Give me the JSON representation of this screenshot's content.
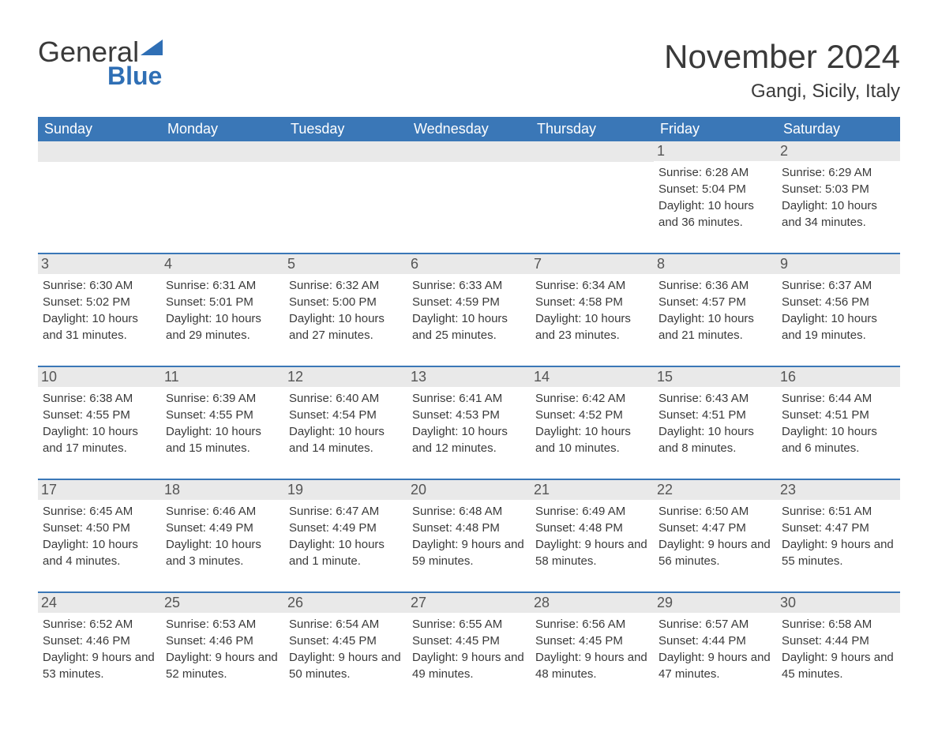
{
  "logo": {
    "text1": "General",
    "text2": "Blue"
  },
  "title": "November 2024",
  "location": "Gangi, Sicily, Italy",
  "colors": {
    "header_bg": "#3a77b7",
    "daynum_bg": "#e9e9e9",
    "row_border": "#3a77b7",
    "accent": "#2f6fb5",
    "background": "#ffffff",
    "text": "#3a3a3a"
  },
  "weekdays": [
    "Sunday",
    "Monday",
    "Tuesday",
    "Wednesday",
    "Thursday",
    "Friday",
    "Saturday"
  ],
  "weeks": [
    [
      null,
      null,
      null,
      null,
      null,
      {
        "day": 1,
        "sunrise": "6:28 AM",
        "sunset": "5:04 PM",
        "daylight": "10 hours and 36 minutes."
      },
      {
        "day": 2,
        "sunrise": "6:29 AM",
        "sunset": "5:03 PM",
        "daylight": "10 hours and 34 minutes."
      }
    ],
    [
      {
        "day": 3,
        "sunrise": "6:30 AM",
        "sunset": "5:02 PM",
        "daylight": "10 hours and 31 minutes."
      },
      {
        "day": 4,
        "sunrise": "6:31 AM",
        "sunset": "5:01 PM",
        "daylight": "10 hours and 29 minutes."
      },
      {
        "day": 5,
        "sunrise": "6:32 AM",
        "sunset": "5:00 PM",
        "daylight": "10 hours and 27 minutes."
      },
      {
        "day": 6,
        "sunrise": "6:33 AM",
        "sunset": "4:59 PM",
        "daylight": "10 hours and 25 minutes."
      },
      {
        "day": 7,
        "sunrise": "6:34 AM",
        "sunset": "4:58 PM",
        "daylight": "10 hours and 23 minutes."
      },
      {
        "day": 8,
        "sunrise": "6:36 AM",
        "sunset": "4:57 PM",
        "daylight": "10 hours and 21 minutes."
      },
      {
        "day": 9,
        "sunrise": "6:37 AM",
        "sunset": "4:56 PM",
        "daylight": "10 hours and 19 minutes."
      }
    ],
    [
      {
        "day": 10,
        "sunrise": "6:38 AM",
        "sunset": "4:55 PM",
        "daylight": "10 hours and 17 minutes."
      },
      {
        "day": 11,
        "sunrise": "6:39 AM",
        "sunset": "4:55 PM",
        "daylight": "10 hours and 15 minutes."
      },
      {
        "day": 12,
        "sunrise": "6:40 AM",
        "sunset": "4:54 PM",
        "daylight": "10 hours and 14 minutes."
      },
      {
        "day": 13,
        "sunrise": "6:41 AM",
        "sunset": "4:53 PM",
        "daylight": "10 hours and 12 minutes."
      },
      {
        "day": 14,
        "sunrise": "6:42 AM",
        "sunset": "4:52 PM",
        "daylight": "10 hours and 10 minutes."
      },
      {
        "day": 15,
        "sunrise": "6:43 AM",
        "sunset": "4:51 PM",
        "daylight": "10 hours and 8 minutes."
      },
      {
        "day": 16,
        "sunrise": "6:44 AM",
        "sunset": "4:51 PM",
        "daylight": "10 hours and 6 minutes."
      }
    ],
    [
      {
        "day": 17,
        "sunrise": "6:45 AM",
        "sunset": "4:50 PM",
        "daylight": "10 hours and 4 minutes."
      },
      {
        "day": 18,
        "sunrise": "6:46 AM",
        "sunset": "4:49 PM",
        "daylight": "10 hours and 3 minutes."
      },
      {
        "day": 19,
        "sunrise": "6:47 AM",
        "sunset": "4:49 PM",
        "daylight": "10 hours and 1 minute."
      },
      {
        "day": 20,
        "sunrise": "6:48 AM",
        "sunset": "4:48 PM",
        "daylight": "9 hours and 59 minutes."
      },
      {
        "day": 21,
        "sunrise": "6:49 AM",
        "sunset": "4:48 PM",
        "daylight": "9 hours and 58 minutes."
      },
      {
        "day": 22,
        "sunrise": "6:50 AM",
        "sunset": "4:47 PM",
        "daylight": "9 hours and 56 minutes."
      },
      {
        "day": 23,
        "sunrise": "6:51 AM",
        "sunset": "4:47 PM",
        "daylight": "9 hours and 55 minutes."
      }
    ],
    [
      {
        "day": 24,
        "sunrise": "6:52 AM",
        "sunset": "4:46 PM",
        "daylight": "9 hours and 53 minutes."
      },
      {
        "day": 25,
        "sunrise": "6:53 AM",
        "sunset": "4:46 PM",
        "daylight": "9 hours and 52 minutes."
      },
      {
        "day": 26,
        "sunrise": "6:54 AM",
        "sunset": "4:45 PM",
        "daylight": "9 hours and 50 minutes."
      },
      {
        "day": 27,
        "sunrise": "6:55 AM",
        "sunset": "4:45 PM",
        "daylight": "9 hours and 49 minutes."
      },
      {
        "day": 28,
        "sunrise": "6:56 AM",
        "sunset": "4:45 PM",
        "daylight": "9 hours and 48 minutes."
      },
      {
        "day": 29,
        "sunrise": "6:57 AM",
        "sunset": "4:44 PM",
        "daylight": "9 hours and 47 minutes."
      },
      {
        "day": 30,
        "sunrise": "6:58 AM",
        "sunset": "4:44 PM",
        "daylight": "9 hours and 45 minutes."
      }
    ]
  ],
  "labels": {
    "sunrise": "Sunrise:",
    "sunset": "Sunset:",
    "daylight": "Daylight:"
  }
}
